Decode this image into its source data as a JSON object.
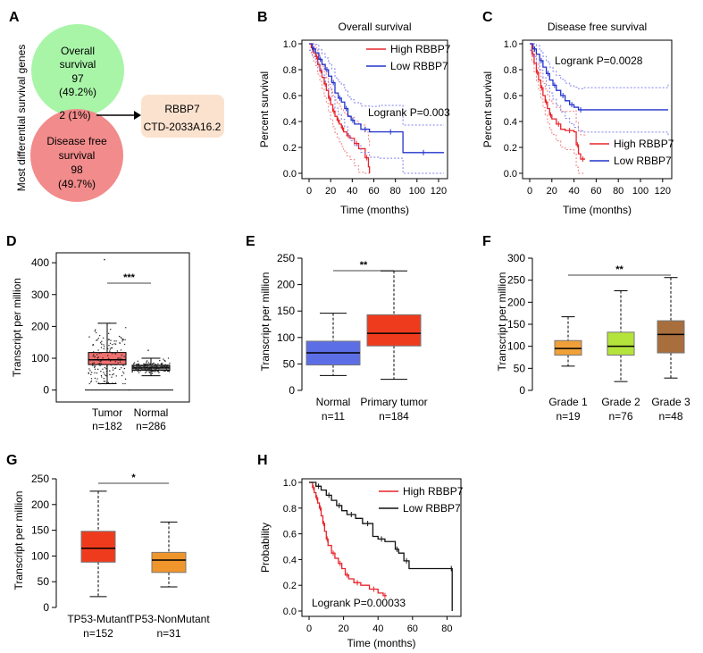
{
  "colors": {
    "red": "#e8232a",
    "blue": "#2233cc",
    "dotred": "#f08080",
    "dotblue": "#8080f0",
    "green_circle": "#a8f5a8",
    "pink_circle": "#f28b8b",
    "peach_box": "#fbe2cf",
    "normal_blue": "#5c6ee6",
    "tumor_red": "#ef3b1d",
    "grade1": "#f0a038",
    "grade2": "#b4e33c",
    "grade3": "#a86e3c",
    "orange": "#f0952c",
    "gepia_red": "#f07070",
    "gepia_grey": "#909090"
  },
  "panelA": {
    "label": "A",
    "ylabel": "Most differential survival genes",
    "os_line1": "Overall",
    "os_line2": "survival",
    "os_count": "97",
    "os_pct": "(49.2%)",
    "overlap": "2 (1%)",
    "dfs_line1": "Disease free",
    "dfs_line2": "survival",
    "dfs_count": "98",
    "dfs_pct": "(49.7%)",
    "gene1": "RBBP7",
    "gene2": "CTD-2033A16.2"
  },
  "chart_data": [
    {
      "panel": "B",
      "type": "line",
      "title": "Overall survival",
      "xlabel": "Time (months)",
      "ylabel": "Percent survival",
      "xlim": [
        0,
        125
      ],
      "ylim": [
        0,
        1.0
      ],
      "xticks": [
        "0",
        "20",
        "40",
        "60",
        "80",
        "100",
        "120"
      ],
      "yticks": [
        "0.0",
        "0.2",
        "0.4",
        "0.6",
        "0.8",
        "1.0"
      ],
      "annotation": "Logrank P=0.003",
      "series": [
        {
          "name": "High RBBP7",
          "color": "#e8232a",
          "steps": [
            [
              0,
              1.0
            ],
            [
              2,
              0.97
            ],
            [
              4,
              0.93
            ],
            [
              6,
              0.9
            ],
            [
              8,
              0.84
            ],
            [
              10,
              0.79
            ],
            [
              12,
              0.74
            ],
            [
              14,
              0.69
            ],
            [
              16,
              0.64
            ],
            [
              18,
              0.58
            ],
            [
              20,
              0.53
            ],
            [
              22,
              0.48
            ],
            [
              24,
              0.44
            ],
            [
              26,
              0.41
            ],
            [
              28,
              0.38
            ],
            [
              30,
              0.35
            ],
            [
              32,
              0.32
            ],
            [
              35,
              0.29
            ],
            [
              38,
              0.27
            ],
            [
              42,
              0.23
            ],
            [
              46,
              0.19
            ],
            [
              52,
              0.12
            ],
            [
              55,
              0.05
            ],
            [
              56,
              0.0
            ]
          ]
        },
        {
          "name": "Low RBBP7",
          "color": "#2233cc",
          "steps": [
            [
              0,
              1.0
            ],
            [
              3,
              0.96
            ],
            [
              6,
              0.93
            ],
            [
              9,
              0.88
            ],
            [
              12,
              0.84
            ],
            [
              15,
              0.8
            ],
            [
              18,
              0.75
            ],
            [
              21,
              0.7
            ],
            [
              24,
              0.62
            ],
            [
              27,
              0.58
            ],
            [
              30,
              0.55
            ],
            [
              33,
              0.5
            ],
            [
              36,
              0.44
            ],
            [
              39,
              0.41
            ],
            [
              42,
              0.38
            ],
            [
              48,
              0.34
            ],
            [
              56,
              0.32
            ],
            [
              65,
              0.32
            ],
            [
              86,
              0.32
            ],
            [
              87,
              0.16
            ],
            [
              125,
              0.16
            ]
          ]
        }
      ]
    },
    {
      "panel": "C",
      "type": "line",
      "title": "Disease free survival",
      "xlabel": "Time (months)",
      "ylabel": "Percent survival",
      "xlim": [
        0,
        125
      ],
      "ylim": [
        0,
        1.0
      ],
      "xticks": [
        "0",
        "20",
        "40",
        "60",
        "80",
        "100",
        "120"
      ],
      "yticks": [
        "0.0",
        "0.2",
        "0.4",
        "0.6",
        "0.8",
        "1.0"
      ],
      "annotation": "Logrank P=0.0028",
      "series": [
        {
          "name": "High RBBP7",
          "color": "#e8232a",
          "steps": [
            [
              0,
              1.0
            ],
            [
              2,
              0.92
            ],
            [
              4,
              0.85
            ],
            [
              6,
              0.78
            ],
            [
              8,
              0.72
            ],
            [
              10,
              0.66
            ],
            [
              12,
              0.6
            ],
            [
              14,
              0.55
            ],
            [
              16,
              0.5
            ],
            [
              18,
              0.45
            ],
            [
              20,
              0.42
            ],
            [
              24,
              0.38
            ],
            [
              28,
              0.34
            ],
            [
              32,
              0.33
            ],
            [
              40,
              0.32
            ],
            [
              42,
              0.22
            ],
            [
              44,
              0.15
            ],
            [
              46,
              0.11
            ],
            [
              50,
              0.11
            ]
          ]
        },
        {
          "name": "Low RBBP7",
          "color": "#2233cc",
          "steps": [
            [
              0,
              1.0
            ],
            [
              3,
              0.96
            ],
            [
              6,
              0.92
            ],
            [
              9,
              0.87
            ],
            [
              12,
              0.82
            ],
            [
              15,
              0.77
            ],
            [
              18,
              0.72
            ],
            [
              21,
              0.68
            ],
            [
              24,
              0.64
            ],
            [
              28,
              0.6
            ],
            [
              32,
              0.56
            ],
            [
              36,
              0.53
            ],
            [
              40,
              0.51
            ],
            [
              44,
              0.49
            ],
            [
              48,
              0.49
            ],
            [
              125,
              0.49
            ]
          ]
        }
      ]
    },
    {
      "panel": "D",
      "type": "box",
      "ylabel": "Transcript per million",
      "ylim": [
        -15,
        420
      ],
      "yticks": [
        "0",
        "100",
        "200",
        "300",
        "400"
      ],
      "significance": "***",
      "categories": [
        "Tumor",
        "Normal"
      ],
      "n_labels": [
        "n=182",
        "n=286"
      ],
      "boxes": [
        {
          "q1": 80,
          "median": 95,
          "q3": 118,
          "wlo": 20,
          "whi": 210,
          "max_outlier": 410,
          "color": "#f07070"
        },
        {
          "q1": 62,
          "median": 70,
          "q3": 78,
          "wlo": 45,
          "whi": 100,
          "max_outlier": 125,
          "color": "#909090"
        }
      ]
    },
    {
      "panel": "E",
      "type": "box",
      "ylabel": "Transcript per million",
      "ylim": [
        0,
        250
      ],
      "yticks": [
        "0",
        "50",
        "100",
        "150",
        "200",
        "250"
      ],
      "significance": "**",
      "categories": [
        "Normal",
        "Primary tumor"
      ],
      "n_labels": [
        "n=11",
        "n=184"
      ],
      "boxes": [
        {
          "q1": 48,
          "median": 71,
          "q3": 93,
          "wlo": 28,
          "whi": 146,
          "color": "#5c6ee6"
        },
        {
          "q1": 84,
          "median": 108,
          "q3": 143,
          "wlo": 21,
          "whi": 226,
          "color": "#ef3b1d"
        }
      ]
    },
    {
      "panel": "F",
      "type": "box",
      "ylabel": "Transcript per million",
      "ylim": [
        0,
        300
      ],
      "yticks": [
        "0",
        "50",
        "100",
        "150",
        "200",
        "250",
        "300"
      ],
      "significance": "**",
      "categories": [
        "Grade 1",
        "Grade 2",
        "Grade 3"
      ],
      "n_labels": [
        "n=19",
        "n=76",
        "n=48"
      ],
      "boxes": [
        {
          "q1": 80,
          "median": 95,
          "q3": 113,
          "wlo": 55,
          "whi": 167,
          "color": "#f0a038"
        },
        {
          "q1": 80,
          "median": 100,
          "q3": 132,
          "wlo": 20,
          "whi": 226,
          "color": "#b4e33c"
        },
        {
          "q1": 85,
          "median": 127,
          "q3": 158,
          "wlo": 28,
          "whi": 256,
          "color": "#a86e3c"
        }
      ]
    },
    {
      "panel": "G",
      "type": "box",
      "ylabel": "Transcript per million",
      "ylim": [
        0,
        250
      ],
      "yticks": [
        "0",
        "50",
        "100",
        "150",
        "200",
        "250"
      ],
      "significance": "*",
      "categories": [
        "TP53-Mutant",
        "TP53-NonMutant"
      ],
      "n_labels": [
        "n=152",
        "n=31"
      ],
      "boxes": [
        {
          "q1": 88,
          "median": 115,
          "q3": 148,
          "wlo": 21,
          "whi": 226,
          "color": "#ef3b1d"
        },
        {
          "q1": 68,
          "median": 92,
          "q3": 107,
          "wlo": 40,
          "whi": 166,
          "color": "#f0952c"
        }
      ]
    },
    {
      "panel": "H",
      "type": "line",
      "xlabel": "Time (months)",
      "ylabel": "Probability",
      "xlim": [
        0,
        86
      ],
      "ylim": [
        0,
        1.0
      ],
      "xticks": [
        "0",
        "20",
        "40",
        "60",
        "80"
      ],
      "yticks": [
        "0.0",
        "0.2",
        "0.4",
        "0.6",
        "0.8",
        "1.0"
      ],
      "annotation": "Logrank P=0.00033",
      "series": [
        {
          "name": "High RBBP7",
          "color": "#e8232a",
          "steps": [
            [
              0,
              1.0
            ],
            [
              2,
              0.96
            ],
            [
              3,
              0.92
            ],
            [
              4,
              0.88
            ],
            [
              5,
              0.84
            ],
            [
              6,
              0.8
            ],
            [
              7,
              0.74
            ],
            [
              8,
              0.68
            ],
            [
              9,
              0.62
            ],
            [
              10,
              0.56
            ],
            [
              11,
              0.51
            ],
            [
              13,
              0.45
            ],
            [
              15,
              0.41
            ],
            [
              17,
              0.37
            ],
            [
              19,
              0.33
            ],
            [
              21,
              0.28
            ],
            [
              23,
              0.25
            ],
            [
              26,
              0.22
            ],
            [
              30,
              0.2
            ],
            [
              35,
              0.17
            ],
            [
              40,
              0.14
            ],
            [
              43,
              0.12
            ],
            [
              45,
              0.12
            ]
          ]
        },
        {
          "name": "Low RBBP7",
          "color": "#111111",
          "steps": [
            [
              0,
              1.0
            ],
            [
              4,
              0.97
            ],
            [
              7,
              0.94
            ],
            [
              10,
              0.9
            ],
            [
              13,
              0.86
            ],
            [
              16,
              0.82
            ],
            [
              19,
              0.78
            ],
            [
              22,
              0.75
            ],
            [
              27,
              0.72
            ],
            [
              31,
              0.68
            ],
            [
              37,
              0.58
            ],
            [
              40,
              0.56
            ],
            [
              44,
              0.54
            ],
            [
              50,
              0.48
            ],
            [
              52,
              0.45
            ],
            [
              55,
              0.39
            ],
            [
              58,
              0.33
            ],
            [
              82,
              0.33
            ],
            [
              83,
              0.0
            ]
          ]
        }
      ]
    }
  ]
}
